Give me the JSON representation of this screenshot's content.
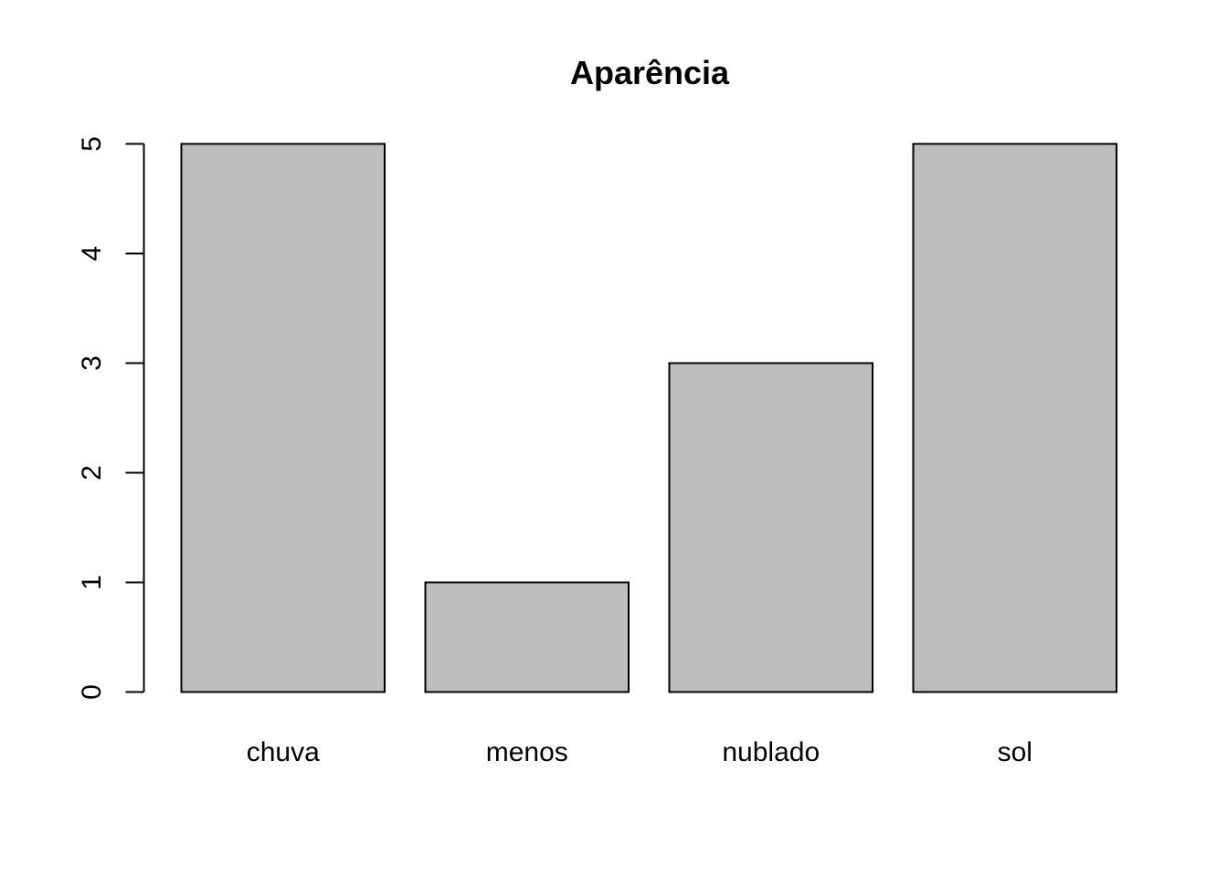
{
  "chart_data": {
    "type": "bar",
    "title": "Aparência",
    "xlabel": "",
    "ylabel": "",
    "categories": [
      "chuva",
      "menos",
      "nublado",
      "sol"
    ],
    "values": [
      5,
      1,
      3,
      5
    ],
    "ylim": [
      0,
      5
    ],
    "yticks": [
      0,
      1,
      2,
      3,
      4,
      5
    ],
    "bar_color": "#bebebe",
    "grid": false,
    "legend": "none"
  }
}
